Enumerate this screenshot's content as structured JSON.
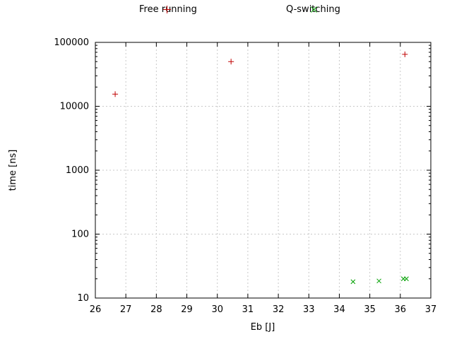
{
  "chart_data": {
    "type": "scatter",
    "title": "",
    "xlabel": "Eb [J]",
    "ylabel": "time [ns]",
    "x_scale": "linear",
    "y_scale": "log",
    "xlim": [
      26,
      37
    ],
    "ylim": [
      10,
      100000
    ],
    "x_ticks": [
      26,
      27,
      28,
      29,
      30,
      31,
      32,
      33,
      34,
      35,
      36,
      37
    ],
    "y_ticks": [
      10,
      100,
      1000,
      10000,
      100000
    ],
    "grid": true,
    "legend_position": "top-center",
    "series": [
      {
        "name": "Free running",
        "marker": "plus",
        "color": "#c00000",
        "points": [
          [
            26.65,
            15500
          ],
          [
            30.45,
            50000
          ],
          [
            36.15,
            65000
          ]
        ]
      },
      {
        "name": "Q-switching",
        "marker": "cross",
        "color": "#00a000",
        "points": [
          [
            34.45,
            18
          ],
          [
            35.3,
            18.5
          ],
          [
            36.1,
            20
          ],
          [
            36.2,
            20
          ]
        ]
      }
    ]
  },
  "colors": {
    "grid": "#c8c8c8",
    "axis": "#000000",
    "text": "#000000",
    "background": "#ffffff"
  }
}
